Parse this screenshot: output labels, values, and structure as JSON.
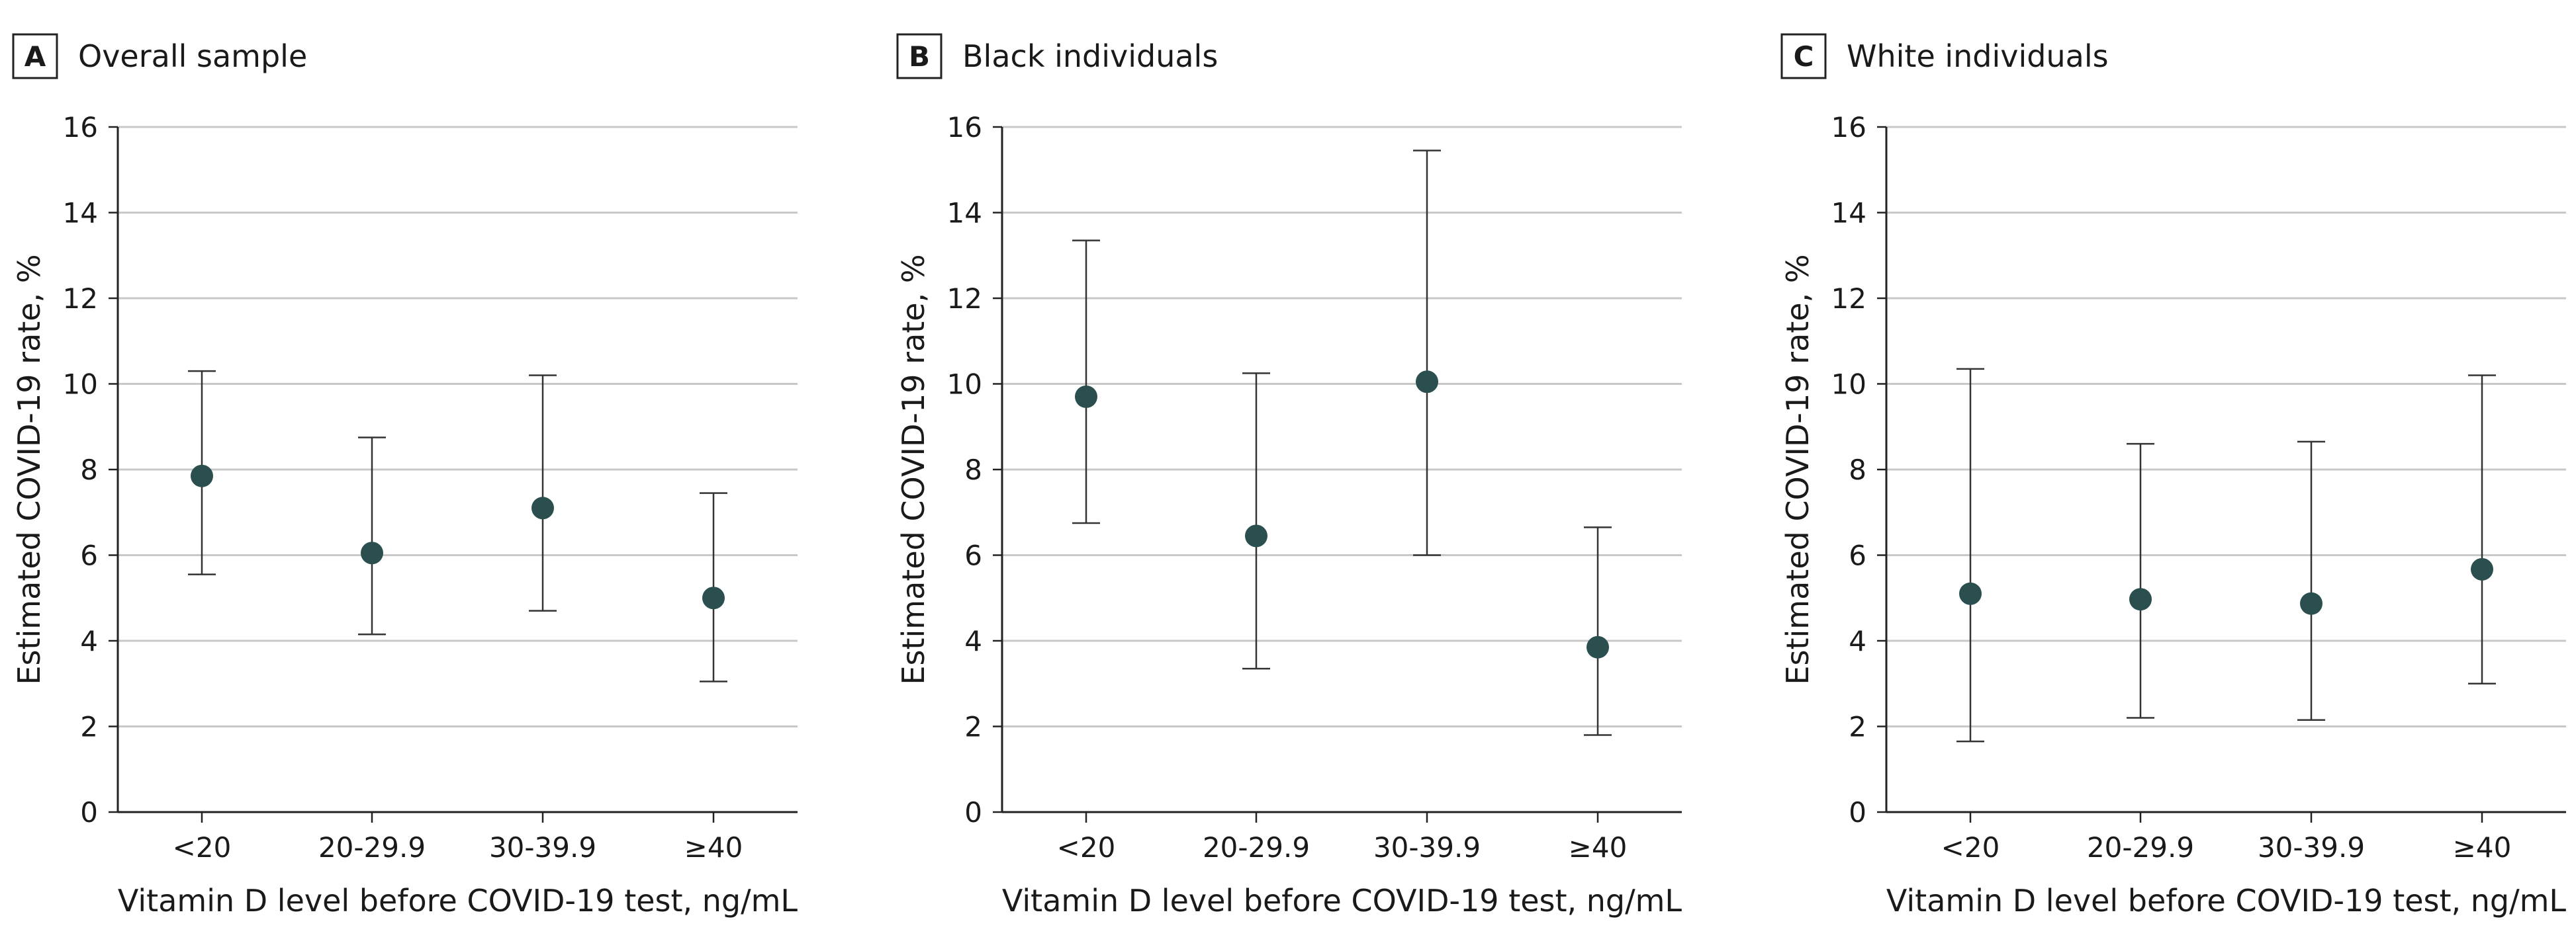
{
  "chart_data": [
    {
      "type": "scatter",
      "panel_letter": "A",
      "title": "Overall sample",
      "xlabel": "Vitamin D level before COVID-19 test, ng/mL",
      "ylabel": "Estimated COVID-19 rate, %",
      "categories": [
        "<20",
        "20-29.9",
        "30-39.9",
        "≥40"
      ],
      "ylim": [
        0,
        16
      ],
      "yticks": [
        0,
        2,
        4,
        6,
        8,
        10,
        12,
        14,
        16
      ],
      "grid": true,
      "series": [
        {
          "values": [
            7.85,
            6.05,
            7.1,
            5.0
          ],
          "lower": [
            5.55,
            4.15,
            4.7,
            3.05
          ],
          "upper": [
            10.3,
            8.75,
            10.2,
            7.45
          ]
        }
      ]
    },
    {
      "type": "scatter",
      "panel_letter": "B",
      "title": "Black individuals",
      "xlabel": "Vitamin D level before COVID-19 test, ng/mL",
      "ylabel": "Estimated COVID-19 rate, %",
      "categories": [
        "<20",
        "20-29.9",
        "30-39.9",
        "≥40"
      ],
      "ylim": [
        0,
        16
      ],
      "yticks": [
        0,
        2,
        4,
        6,
        8,
        10,
        12,
        14,
        16
      ],
      "grid": true,
      "series": [
        {
          "values": [
            9.7,
            6.45,
            10.05,
            3.85
          ],
          "lower": [
            6.75,
            3.35,
            6.0,
            1.8
          ],
          "upper": [
            13.35,
            10.25,
            15.45,
            6.65
          ]
        }
      ]
    },
    {
      "type": "scatter",
      "panel_letter": "C",
      "title": "White individuals",
      "xlabel": "Vitamin D level before COVID-19 test, ng/mL",
      "ylabel": "Estimated COVID-19 rate, %",
      "categories": [
        "<20",
        "20-29.9",
        "30-39.9",
        "≥40"
      ],
      "ylim": [
        0,
        16
      ],
      "yticks": [
        0,
        2,
        4,
        6,
        8,
        10,
        12,
        14,
        16
      ],
      "grid": true,
      "series": [
        {
          "values": [
            5.1,
            4.97,
            4.87,
            5.67
          ],
          "lower": [
            1.65,
            2.2,
            2.15,
            3.0
          ],
          "upper": [
            10.35,
            8.6,
            8.65,
            10.2
          ]
        }
      ]
    }
  ],
  "colors": {
    "marker": "#2a4f4e",
    "errorbar": "#333333",
    "grid": "#c8c8c8",
    "axis": "#222222",
    "text": "#1a1a1a"
  }
}
